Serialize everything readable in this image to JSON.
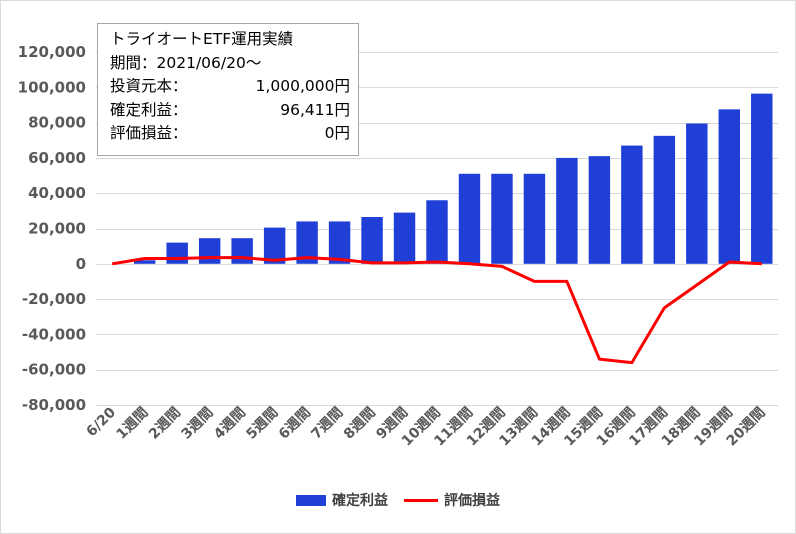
{
  "info": {
    "title": "トライオートETF運用実績",
    "period_label": "期間：2021/06/20～",
    "principal_label": "投資元本：",
    "principal_value": "1,000,000円",
    "realized_label": "確定利益：",
    "realized_value": "96,411円",
    "unrealized_label": "評価損益：",
    "unrealized_value": "0円"
  },
  "colors": {
    "bar": "#1f3fd6",
    "line": "#ff0000",
    "grid": "#d9d9d9",
    "text": "#595959"
  },
  "chart_data": {
    "type": "bar",
    "categories": [
      "6/20",
      "1週間",
      "2週間",
      "3週間",
      "4週間",
      "5週間",
      "6週間",
      "7週間",
      "8週間",
      "9週間",
      "10週間",
      "11週間",
      "12週間",
      "13週間",
      "14週間",
      "15週間",
      "16週間",
      "17週間",
      "18週間",
      "19週間",
      "20週間"
    ],
    "series": [
      {
        "name": "確定利益",
        "type": "bar",
        "values": [
          0,
          2000,
          12000,
          14500,
          14500,
          20500,
          24000,
          24000,
          26500,
          29000,
          36000,
          51000,
          51000,
          51000,
          60000,
          61000,
          67000,
          72500,
          79500,
          87500,
          96411
        ]
      },
      {
        "name": "評価損益",
        "type": "line",
        "values": [
          0,
          3000,
          3000,
          3500,
          3500,
          2000,
          3500,
          2500,
          500,
          500,
          1000,
          0,
          -1500,
          -10000,
          -10000,
          -54000,
          -56000,
          -25000,
          -12000,
          1000,
          0
        ]
      }
    ],
    "ylim": [
      -80000,
      120000
    ],
    "yticks": [
      -80000,
      -60000,
      -40000,
      -20000,
      0,
      20000,
      40000,
      60000,
      80000,
      100000,
      120000
    ],
    "ytick_labels": [
      "-80,000",
      "-60,000",
      "-40,000",
      "-20,000",
      "0",
      "20,000",
      "40,000",
      "60,000",
      "80,000",
      "100,000",
      "120,000"
    ],
    "grid": true,
    "legend_position": "bottom"
  }
}
